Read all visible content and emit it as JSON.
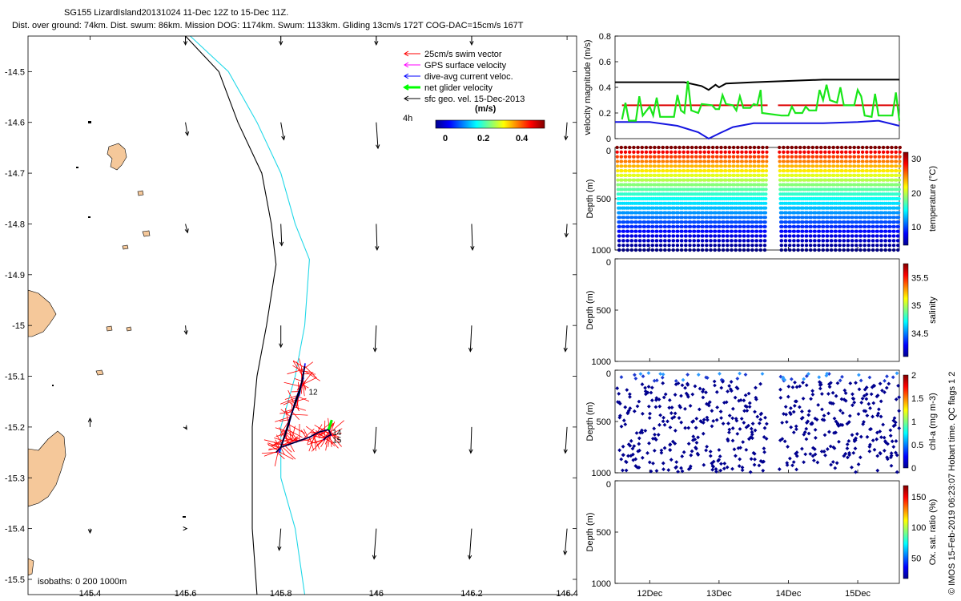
{
  "header": {
    "line1": "SG155 LizardIsland20131024 11-Dec 12Z to 15-Dec 11Z.",
    "line2": "Dist. over ground: 74km. Dist. swum: 86km. Mission DOG: 1174km. Swum: 1133km. Gliding 13cm/s 172T COG-DAC=15cm/s 167T"
  },
  "colors": {
    "land": "#F5C89A",
    "isobath_200": "#000000",
    "isobath_1000": "#22D8E8",
    "swim": "#FF0000",
    "gps": "#FF00FF",
    "dac": "#0000FF",
    "net": "#00FF00",
    "geo": "#000000",
    "mean_line": "#DD0000"
  },
  "legend": {
    "items": [
      {
        "label": "25cm/s swim vector",
        "color": "#FF0000"
      },
      {
        "label": "GPS surface velocity",
        "color": "#FF00FF"
      },
      {
        "label": "dive-avg current veloc.",
        "color": "#0000FF"
      },
      {
        "label": "net glider velocity",
        "color": "#00FF00"
      },
      {
        "label": "sfc geo. vel. 15-Dec-2013",
        "color": "#000000"
      }
    ],
    "interval": "4h",
    "units": "(m/s)",
    "colorbar_ticks": [
      "0",
      "0.2",
      "0.4"
    ]
  },
  "isobath_note": "isobaths: 0   200  1000m",
  "credit": "© IMOS 15-Feb-2019 06:23:07 Hobart time. QC flags 1  2",
  "chart_data": [
    {
      "type": "line",
      "name": "map",
      "xlim": [
        145.27,
        146.42
      ],
      "ylim": [
        -15.53,
        -14.43
      ],
      "xticks": [
        "145.4",
        "145.6",
        "145.8",
        "146",
        "146.2",
        "146.4"
      ],
      "yticks": [
        "-14.5",
        "-14.6",
        "-14.7",
        "-14.8",
        "-14.9",
        "-15",
        "-15.1",
        "-15.2",
        "-15.3",
        "-15.4",
        "-15.5"
      ],
      "isobath_200": [
        [
          145.6,
          -14.43
        ],
        [
          145.67,
          -14.5
        ],
        [
          145.71,
          -14.6
        ],
        [
          145.76,
          -14.7
        ],
        [
          145.78,
          -14.8
        ],
        [
          145.79,
          -14.88
        ],
        [
          145.77,
          -15.0
        ],
        [
          145.75,
          -15.1
        ],
        [
          145.74,
          -15.2
        ],
        [
          145.74,
          -15.3
        ],
        [
          145.74,
          -15.4
        ],
        [
          145.75,
          -15.53
        ]
      ],
      "isobath_1000": [
        [
          145.61,
          -14.43
        ],
        [
          145.69,
          -14.5
        ],
        [
          145.75,
          -14.6
        ],
        [
          145.8,
          -14.7
        ],
        [
          145.83,
          -14.8
        ],
        [
          145.86,
          -14.87
        ],
        [
          145.85,
          -15.0
        ],
        [
          145.83,
          -15.1
        ],
        [
          145.8,
          -15.2
        ],
        [
          145.8,
          -15.3
        ],
        [
          145.83,
          -15.4
        ],
        [
          145.85,
          -15.53
        ]
      ],
      "geo_vectors": [
        {
          "lon": 145.6,
          "lat": -14.43,
          "u": 0.0,
          "v": -0.02
        },
        {
          "lon": 145.8,
          "lat": -14.43,
          "u": 0.0,
          "v": -0.02
        },
        {
          "lon": 146.0,
          "lat": -14.43,
          "u": 0.0,
          "v": -0.02
        },
        {
          "lon": 146.2,
          "lat": -14.43,
          "u": 0.0,
          "v": -0.02
        },
        {
          "lon": 145.6,
          "lat": -14.6,
          "u": 0.005,
          "v": -0.03
        },
        {
          "lon": 145.8,
          "lat": -14.6,
          "u": 0.007,
          "v": -0.04
        },
        {
          "lon": 146.0,
          "lat": -14.6,
          "u": 0.004,
          "v": -0.06
        },
        {
          "lon": 146.4,
          "lat": -14.6,
          "u": -0.003,
          "v": -0.04
        },
        {
          "lon": 145.6,
          "lat": -14.8,
          "u": 0.005,
          "v": -0.02
        },
        {
          "lon": 145.8,
          "lat": -14.8,
          "u": 0.002,
          "v": -0.05
        },
        {
          "lon": 146.0,
          "lat": -14.8,
          "u": 0.002,
          "v": -0.06
        },
        {
          "lon": 146.2,
          "lat": -14.8,
          "u": 0.002,
          "v": -0.06
        },
        {
          "lon": 146.4,
          "lat": -14.8,
          "u": -0.002,
          "v": -0.03
        },
        {
          "lon": 145.6,
          "lat": -15.0,
          "u": 0.002,
          "v": -0.02
        },
        {
          "lon": 145.8,
          "lat": -15.0,
          "u": 0.0,
          "v": -0.05
        },
        {
          "lon": 146.0,
          "lat": -15.0,
          "u": -0.003,
          "v": -0.06
        },
        {
          "lon": 146.2,
          "lat": -15.0,
          "u": -0.003,
          "v": -0.06
        },
        {
          "lon": 146.4,
          "lat": -15.0,
          "u": -0.004,
          "v": -0.06
        },
        {
          "lon": 145.4,
          "lat": -15.2,
          "u": 0.0,
          "v": 0.02
        },
        {
          "lon": 145.6,
          "lat": -15.2,
          "u": 0.003,
          "v": -0.005
        },
        {
          "lon": 146.0,
          "lat": -15.2,
          "u": -0.004,
          "v": -0.06
        },
        {
          "lon": 146.2,
          "lat": -15.2,
          "u": -0.002,
          "v": -0.06
        },
        {
          "lon": 146.4,
          "lat": -15.2,
          "u": -0.004,
          "v": -0.06
        },
        {
          "lon": 145.4,
          "lat": -15.4,
          "u": 0.0,
          "v": -0.01
        },
        {
          "lon": 145.6,
          "lat": -15.4,
          "u": 0.003,
          "v": 0.0
        },
        {
          "lon": 145.8,
          "lat": -15.4,
          "u": -0.004,
          "v": -0.05
        },
        {
          "lon": 146.0,
          "lat": -15.4,
          "u": -0.005,
          "v": -0.07
        },
        {
          "lon": 146.2,
          "lat": -15.4,
          "u": -0.005,
          "v": -0.07
        },
        {
          "lon": 146.4,
          "lat": -15.4,
          "u": -0.005,
          "v": -0.06
        }
      ],
      "track": [
        [
          145.79,
          -15.25
        ],
        [
          145.8,
          -15.24
        ],
        [
          145.815,
          -15.2
        ],
        [
          145.83,
          -15.15
        ],
        [
          145.845,
          -15.11
        ],
        [
          145.85,
          -15.08
        ],
        [
          145.84,
          -15.13
        ],
        [
          145.82,
          -15.18
        ],
        [
          145.8,
          -15.24
        ],
        [
          145.83,
          -15.23
        ],
        [
          145.86,
          -15.22
        ],
        [
          145.88,
          -15.21
        ],
        [
          145.9,
          -15.205
        ],
        [
          145.905,
          -15.215
        ],
        [
          145.895,
          -15.22
        ],
        [
          145.89,
          -15.225
        ]
      ],
      "track_labels": [
        {
          "text": "12",
          "lon": 145.855,
          "lat": -15.13
        },
        {
          "text": "14",
          "lon": 145.905,
          "lat": -15.21
        },
        {
          "text": "15",
          "lon": 145.905,
          "lat": -15.225
        }
      ]
    },
    {
      "type": "line",
      "name": "velocity",
      "ylabel": "velocity magnitude (m/s)",
      "ylim": [
        0,
        0.8
      ],
      "yticks": [
        "0",
        "0.2",
        "0.4",
        "0.6",
        "0.8"
      ],
      "xlim": [
        11.5,
        15.6
      ],
      "series": [
        {
          "color": "black",
          "values": [
            [
              11.5,
              0.44
            ],
            [
              12.0,
              0.44
            ],
            [
              12.5,
              0.44
            ],
            [
              12.75,
              0.41
            ],
            [
              12.85,
              0.38
            ],
            [
              12.95,
              0.42
            ],
            [
              13.0,
              0.4
            ],
            [
              13.1,
              0.43
            ],
            [
              13.5,
              0.44
            ],
            [
              14.0,
              0.45
            ],
            [
              14.5,
              0.46
            ],
            [
              15.0,
              0.46
            ],
            [
              15.6,
              0.46
            ]
          ]
        },
        {
          "color": "blue",
          "values": [
            [
              11.5,
              0.13
            ],
            [
              12.0,
              0.13
            ],
            [
              12.4,
              0.1
            ],
            [
              12.7,
              0.05
            ],
            [
              12.85,
              0.0
            ],
            [
              13.0,
              0.04
            ],
            [
              13.2,
              0.09
            ],
            [
              13.5,
              0.12
            ],
            [
              14.0,
              0.12
            ],
            [
              14.5,
              0.12
            ],
            [
              15.0,
              0.13
            ],
            [
              15.3,
              0.14
            ],
            [
              15.6,
              0.1
            ]
          ]
        },
        {
          "color": "red",
          "values": [
            [
              11.6,
              0.26
            ],
            [
              13.7,
              0.26
            ]
          ]
        },
        {
          "color": "red",
          "values": [
            [
              13.85,
              0.26
            ],
            [
              15.6,
              0.26
            ]
          ]
        },
        {
          "color": "lime",
          "values": [
            [
              11.6,
              0.15
            ],
            [
              11.65,
              0.28
            ],
            [
              11.7,
              0.14
            ],
            [
              11.8,
              0.14
            ],
            [
              11.85,
              0.33
            ],
            [
              11.9,
              0.18
            ],
            [
              12.0,
              0.25
            ],
            [
              12.05,
              0.18
            ],
            [
              12.1,
              0.32
            ],
            [
              12.15,
              0.17
            ],
            [
              12.35,
              0.17
            ],
            [
              12.4,
              0.34
            ],
            [
              12.45,
              0.22
            ],
            [
              12.5,
              0.2
            ],
            [
              12.55,
              0.45
            ],
            [
              12.6,
              0.22
            ],
            [
              12.7,
              0.2
            ],
            [
              12.75,
              0.27
            ],
            [
              12.9,
              0.26
            ],
            [
              12.95,
              0.23
            ],
            [
              13.0,
              0.23
            ],
            [
              13.05,
              0.34
            ],
            [
              13.1,
              0.27
            ],
            [
              13.2,
              0.26
            ],
            [
              13.25,
              0.22
            ],
            [
              13.3,
              0.33
            ],
            [
              13.35,
              0.24
            ],
            [
              13.45,
              0.24
            ],
            [
              13.5,
              0.27
            ],
            [
              13.55,
              0.26
            ],
            [
              13.6,
              0.38
            ],
            [
              13.62,
              0.2
            ],
            [
              13.9,
              0.18
            ],
            [
              14.0,
              0.18
            ],
            [
              14.05,
              0.25
            ],
            [
              14.1,
              0.2
            ],
            [
              14.2,
              0.2
            ],
            [
              14.25,
              0.25
            ],
            [
              14.3,
              0.22
            ],
            [
              14.4,
              0.22
            ],
            [
              14.45,
              0.38
            ],
            [
              14.5,
              0.3
            ],
            [
              14.55,
              0.42
            ],
            [
              14.6,
              0.3
            ],
            [
              14.7,
              0.28
            ],
            [
              14.75,
              0.4
            ],
            [
              14.8,
              0.26
            ],
            [
              14.95,
              0.26
            ],
            [
              15.0,
              0.38
            ],
            [
              15.05,
              0.33
            ],
            [
              15.1,
              0.18
            ],
            [
              15.2,
              0.17
            ],
            [
              15.25,
              0.35
            ],
            [
              15.3,
              0.18
            ],
            [
              15.5,
              0.18
            ],
            [
              15.55,
              0.36
            ],
            [
              15.6,
              0.14
            ]
          ]
        }
      ]
    },
    {
      "type": "scatter",
      "name": "temperature",
      "ylabel": "Depth (m)",
      "yticks": [
        "0",
        "500",
        "1000"
      ],
      "colorbar_label": "temperature (°C)",
      "colorbar_ticks": [
        "10",
        "20",
        "30"
      ],
      "clim": [
        3,
        31
      ],
      "profile_starts_day": [
        11.53,
        11.59,
        11.65,
        11.71,
        11.77,
        11.83,
        11.89,
        11.95,
        12.01,
        12.07,
        12.13,
        12.19,
        12.25,
        12.31,
        12.37,
        12.43,
        12.49,
        12.55,
        12.61,
        12.67,
        12.73,
        12.79,
        12.85,
        12.91,
        12.97,
        13.03,
        13.09,
        13.15,
        13.21,
        13.27,
        13.33,
        13.39,
        13.45,
        13.51,
        13.57,
        13.63,
        13.87,
        13.93,
        13.99,
        14.05,
        14.11,
        14.17,
        14.23,
        14.29,
        14.35,
        14.41,
        14.47,
        14.53,
        14.59,
        14.65,
        14.71,
        14.77,
        14.83,
        14.89,
        14.95,
        15.01,
        15.07,
        15.13,
        15.19,
        15.25,
        15.31,
        15.37,
        15.43,
        15.49,
        15.55
      ],
      "max_depth_m": 1000
    },
    {
      "type": "scatter",
      "name": "salinity",
      "ylabel": "Depth (m)",
      "yticks": [
        "0",
        "500",
        "1000"
      ],
      "colorbar_label": "salinity",
      "colorbar_ticks": [
        "34.5",
        "35",
        "35.5"
      ]
    },
    {
      "type": "scatter",
      "name": "chla",
      "ylabel": "Depth (m)",
      "yticks": [
        "0",
        "500",
        "1000"
      ],
      "colorbar_label": "chl-a (mg m-3)",
      "colorbar_ticks": [
        "0",
        "0.5",
        "1",
        "1.5",
        "2"
      ]
    },
    {
      "type": "scatter",
      "name": "oxygen",
      "ylabel": "Depth (m)",
      "yticks": [
        "0",
        "500",
        "1000"
      ],
      "colorbar_label": "Ox. sat. ratio (%)",
      "colorbar_ticks": [
        "50",
        "100",
        "150"
      ],
      "xticks": [
        "12Dec",
        "13Dec",
        "14Dec",
        "15Dec"
      ]
    }
  ]
}
